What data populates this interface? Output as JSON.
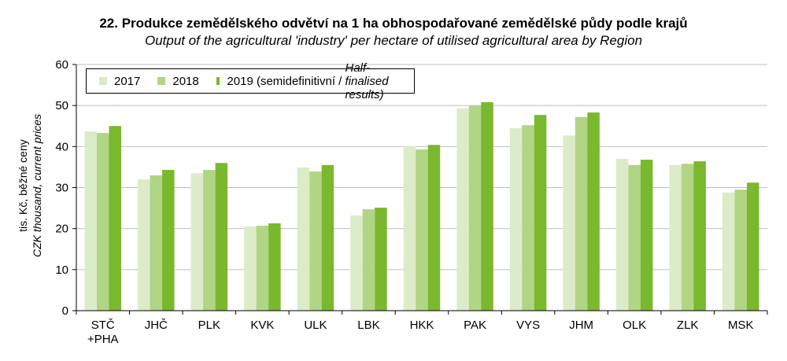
{
  "chart_data": {
    "type": "bar",
    "title": "22. Produkce zemědělského odvětví na 1 ha obhospodařované zemědělské půdy podle krajů",
    "subtitle": "Output of the agricultural 'industry' per hectare of utilised agricultural area by Region",
    "ylabel": "tis. Kč, běžné ceny",
    "ylabel_en": "CZK thousand, current prices",
    "ylim": [
      0,
      60
    ],
    "yticks": [
      0,
      10,
      20,
      30,
      40,
      50,
      60
    ],
    "grid": true,
    "legend_placement": "top-left",
    "categories": [
      "STČ\n+PHA",
      "JHČ",
      "PLK",
      "KVK",
      "ULK",
      "LBK",
      "HKK",
      "PAK",
      "VYS",
      "JHM",
      "OLK",
      "ZLK",
      "MSK"
    ],
    "series": [
      {
        "name": "2017",
        "color": "#dcebc8",
        "values": [
          43.7,
          32.0,
          33.5,
          20.5,
          34.9,
          23.2,
          40.1,
          49.3,
          44.5,
          42.7,
          37.0,
          35.5,
          28.8
        ]
      },
      {
        "name": "2018",
        "color": "#b0d584",
        "values": [
          43.3,
          33.0,
          34.3,
          20.7,
          33.9,
          24.7,
          39.3,
          50.0,
          45.2,
          47.2,
          35.5,
          35.8,
          29.5
        ]
      },
      {
        "name": "2019 (semidefinitivní / ",
        "name_en": "Half-finalised results)",
        "color": "#7ab82e",
        "values": [
          45.0,
          34.3,
          36.0,
          21.3,
          35.5,
          25.1,
          40.4,
          50.8,
          47.7,
          48.3,
          36.8,
          36.4,
          31.2
        ]
      }
    ]
  }
}
